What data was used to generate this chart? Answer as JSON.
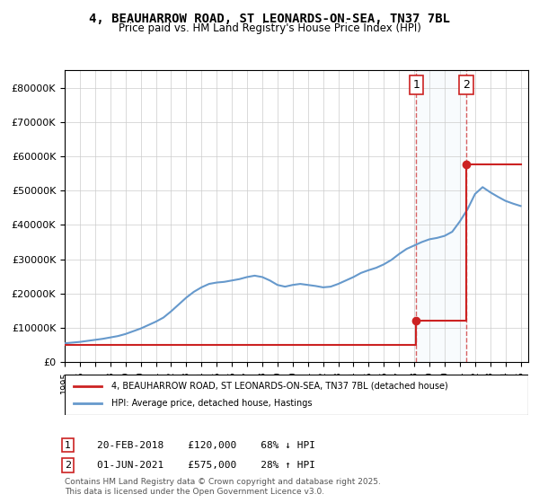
{
  "title": "4, BEAUHARROW ROAD, ST LEONARDS-ON-SEA, TN37 7BL",
  "subtitle": "Price paid vs. HM Land Registry's House Price Index (HPI)",
  "ylabel": "",
  "background_color": "#ffffff",
  "plot_bg_color": "#ffffff",
  "grid_color": "#cccccc",
  "hpi_color": "#6699cc",
  "price_color": "#cc2222",
  "annotation_box_color": "#ffcccc",
  "sale1_date_num": 2018.13,
  "sale1_price": 120000,
  "sale1_label": "1",
  "sale1_text": "20-FEB-2018    £120,000    68% ↓ HPI",
  "sale2_date_num": 2021.42,
  "sale2_price": 575000,
  "sale2_label": "2",
  "sale2_text": "01-JUN-2021    £575,000    28% ↑ HPI",
  "legend_label_price": "4, BEAUHARROW ROAD, ST LEONARDS-ON-SEA, TN37 7BL (detached house)",
  "legend_label_hpi": "HPI: Average price, detached house, Hastings",
  "footer": "Contains HM Land Registry data © Crown copyright and database right 2025.\nThis data is licensed under the Open Government Licence v3.0.",
  "ylim_max": 850000,
  "ylim_min": 0
}
